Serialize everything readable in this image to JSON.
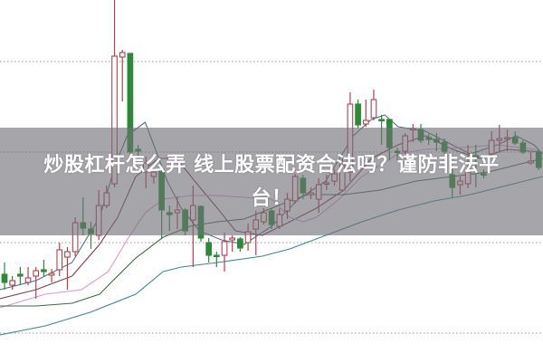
{
  "title": {
    "line1": "炒股杠杆怎么弄 线上股票配资合法吗？谨防非法平",
    "line2": "台！"
  },
  "colors": {
    "up": "#b0404e",
    "down": "#2a8a36",
    "grid": "#9a9a9a",
    "banner": "#707076"
  },
  "chart_data": {
    "type": "candlestick",
    "title": "",
    "xlabel": "",
    "ylabel": "",
    "axis_labels_shown": false,
    "grid": "horizontal dotted",
    "gridlines_y": [
      10,
      20,
      30,
      40
    ],
    "ylim": [
      6.7,
      46.8
    ],
    "xlim": [
      -0.6,
      68.5
    ],
    "candles_ohlc": [
      [
        16.5,
        17.8,
        14.8,
        15.6
      ],
      [
        15.3,
        16.3,
        14.8,
        15.8
      ],
      [
        16.5,
        17.3,
        15.3,
        16.3
      ],
      [
        15.6,
        17.3,
        15.3,
        16.1
      ],
      [
        16.3,
        17.3,
        13.8,
        16.9
      ],
      [
        17.0,
        18.1,
        16.3,
        16.8
      ],
      [
        16.4,
        17.1,
        15.6,
        16.6
      ],
      [
        17.0,
        20.0,
        16.3,
        19.2
      ],
      [
        18.4,
        19.5,
        14.8,
        19.0
      ],
      [
        19.0,
        22.8,
        18.5,
        22.2
      ],
      [
        22.2,
        25.0,
        20.8,
        21.6
      ],
      [
        21.5,
        22.3,
        19.3,
        21.0
      ],
      [
        20.8,
        25.8,
        20.3,
        24.1
      ],
      [
        24.1,
        26.3,
        23.8,
        25.5
      ],
      [
        26.5,
        46.8,
        26.1,
        40.6
      ],
      [
        40.5,
        41.3,
        35.6,
        41.0
      ],
      [
        40.9,
        40.9,
        29.8,
        30.0
      ],
      [
        30.3,
        30.8,
        29.3,
        30.1
      ],
      [
        27.8,
        29.5,
        26.0,
        28.8
      ],
      [
        27.3,
        28.1,
        26.5,
        27.8
      ],
      [
        28.1,
        28.1,
        20.5,
        23.6
      ],
      [
        23.3,
        24.1,
        21.3,
        23.1
      ],
      [
        23.3,
        25.1,
        21.5,
        23.6
      ],
      [
        23.6,
        23.8,
        20.8,
        21.3
      ],
      [
        22.5,
        26.3,
        17.3,
        24.1
      ],
      [
        24.0,
        24.1,
        20.1,
        20.5
      ],
      [
        20.0,
        20.5,
        17.8,
        18.6
      ],
      [
        18.6,
        19.0,
        17.3,
        18.5
      ],
      [
        18.6,
        21.1,
        16.8,
        20.1
      ],
      [
        20.3,
        20.8,
        19.0,
        20.5
      ],
      [
        20.4,
        20.6,
        19.0,
        19.4
      ],
      [
        20.0,
        22.1,
        19.1,
        21.2
      ],
      [
        21.5,
        23.5,
        18.6,
        22.5
      ],
      [
        22.3,
        23.8,
        22.0,
        23.3
      ],
      [
        23.5,
        23.8,
        21.5,
        22.0
      ],
      [
        21.8,
        23.8,
        21.5,
        23.1
      ],
      [
        23.5,
        25.5,
        22.6,
        24.8
      ],
      [
        24.6,
        27.6,
        24.3,
        27.3
      ],
      [
        27.1,
        27.5,
        24.8,
        25.5
      ],
      [
        25.3,
        26.1,
        24.8,
        25.5
      ],
      [
        24.8,
        27.1,
        23.3,
        26.4
      ],
      [
        26.5,
        27.5,
        25.8,
        26.6
      ],
      [
        26.8,
        28.1,
        26.3,
        27.6
      ],
      [
        25.8,
        29.5,
        25.6,
        28.6
      ],
      [
        27.8,
        36.6,
        26.8,
        35.3
      ],
      [
        35.3,
        35.8,
        32.6,
        33.0
      ],
      [
        33.1,
        35.8,
        32.8,
        33.5
      ],
      [
        33.8,
        36.9,
        33.5,
        35.8
      ],
      [
        33.6,
        34.1,
        30.8,
        33.5
      ],
      [
        33.6,
        33.6,
        29.1,
        30.5
      ],
      [
        30.1,
        30.5,
        29.1,
        30.0
      ],
      [
        30.1,
        32.1,
        29.8,
        31.8
      ],
      [
        32.5,
        33.1,
        31.1,
        32.6
      ],
      [
        32.5,
        33.1,
        31.0,
        31.3
      ],
      [
        31.6,
        32.0,
        30.8,
        31.4
      ],
      [
        31.4,
        32.1,
        30.1,
        31.1
      ],
      [
        31.1,
        31.5,
        29.8,
        30.1
      ],
      [
        27.5,
        28.1,
        25.0,
        26.1
      ],
      [
        26.4,
        27.3,
        25.3,
        26.8
      ],
      [
        26.5,
        30.8,
        26.0,
        27.8
      ],
      [
        29.6,
        30.8,
        26.1,
        29.5
      ],
      [
        27.6,
        28.1,
        27.1,
        27.5
      ],
      [
        29.8,
        32.3,
        29.5,
        31.3
      ],
      [
        31.3,
        33.0,
        30.1,
        31.5
      ],
      [
        31.5,
        32.5,
        30.1,
        31.6
      ],
      [
        31.6,
        32.3,
        30.8,
        31.0
      ],
      [
        31.0,
        31.3,
        29.8,
        30.0
      ],
      [
        28.8,
        30.0,
        28.6,
        29.0
      ],
      [
        30.0,
        30.3,
        28.0,
        28.3
      ]
    ],
    "moving_averages": [
      {
        "color": "#4f6f7c",
        "points": [
          [
            -0.6,
            14.8
          ],
          [
            4.0,
            15.8
          ],
          [
            8.6,
            17.8
          ],
          [
            12.1,
            22.8
          ],
          [
            14.2,
            28.8
          ],
          [
            15.6,
            31.8
          ],
          [
            17.9,
            33.3
          ],
          [
            19.0,
            30.8
          ],
          [
            20.7,
            26.8
          ],
          [
            22.5,
            23.8
          ],
          [
            24.8,
            21.3
          ],
          [
            27.6,
            20.3
          ],
          [
            30.5,
            19.8
          ],
          [
            34.0,
            21.8
          ],
          [
            37.4,
            24.8
          ],
          [
            40.9,
            26.8
          ],
          [
            44.4,
            31.8
          ],
          [
            46.7,
            33.6
          ],
          [
            48.4,
            34.1
          ],
          [
            50.1,
            32.8
          ],
          [
            53.6,
            32.3
          ],
          [
            57.0,
            30.8
          ],
          [
            59.3,
            29.8
          ],
          [
            62.8,
            30.8
          ],
          [
            65.1,
            31.8
          ],
          [
            67.4,
            30.8
          ],
          [
            68.5,
            29.8
          ]
        ]
      },
      {
        "color": "#7e3d55",
        "points": [
          [
            -0.6,
            13.8
          ],
          [
            4.0,
            14.8
          ],
          [
            8.6,
            16.3
          ],
          [
            12.1,
            19.8
          ],
          [
            14.4,
            22.8
          ],
          [
            16.7,
            27.3
          ],
          [
            19.6,
            29.3
          ],
          [
            21.9,
            29.3
          ],
          [
            24.2,
            26.8
          ],
          [
            27.1,
            23.8
          ],
          [
            29.4,
            21.3
          ],
          [
            32.8,
            20.8
          ],
          [
            36.3,
            22.3
          ],
          [
            39.7,
            23.8
          ],
          [
            43.2,
            25.8
          ],
          [
            46.7,
            29.3
          ],
          [
            50.1,
            30.8
          ],
          [
            53.6,
            31.8
          ],
          [
            57.0,
            30.3
          ],
          [
            60.5,
            29.3
          ],
          [
            63.9,
            30.3
          ],
          [
            68.5,
            30.0
          ]
        ]
      },
      {
        "color": "#d59ad2",
        "points": [
          [
            -0.6,
            12.8
          ],
          [
            5.2,
            14.3
          ],
          [
            9.8,
            14.8
          ],
          [
            13.2,
            16.8
          ],
          [
            15.6,
            20.3
          ],
          [
            17.9,
            23.3
          ],
          [
            20.2,
            24.8
          ],
          [
            23.6,
            25.2
          ],
          [
            27.1,
            25.2
          ],
          [
            30.5,
            25.0
          ],
          [
            34.0,
            24.8
          ],
          [
            36.3,
            22.8
          ],
          [
            38.0,
            22.3
          ],
          [
            39.7,
            22.8
          ],
          [
            42.6,
            24.8
          ],
          [
            45.5,
            27.3
          ],
          [
            50.1,
            29.8
          ],
          [
            53.6,
            30.3
          ],
          [
            58.2,
            30.5
          ],
          [
            62.8,
            30.8
          ],
          [
            67.4,
            30.3
          ],
          [
            68.5,
            30.0
          ]
        ]
      },
      {
        "color": "#3f6b3f",
        "points": [
          [
            -0.6,
            13.0
          ],
          [
            4.0,
            13.0
          ],
          [
            8.6,
            13.3
          ],
          [
            12.1,
            14.3
          ],
          [
            13.8,
            15.8
          ],
          [
            16.7,
            18.3
          ],
          [
            20.2,
            20.6
          ],
          [
            23.6,
            21.8
          ],
          [
            27.1,
            22.3
          ],
          [
            30.5,
            22.6
          ],
          [
            34.0,
            23.8
          ],
          [
            36.3,
            24.6
          ],
          [
            38.6,
            25.3
          ],
          [
            43.2,
            25.3
          ],
          [
            47.8,
            25.8
          ],
          [
            52.4,
            26.8
          ],
          [
            57.0,
            27.3
          ],
          [
            61.6,
            27.8
          ],
          [
            66.2,
            28.8
          ],
          [
            68.5,
            29.3
          ]
        ]
      },
      {
        "color": "#3b8791",
        "points": [
          [
            -0.6,
            9.8
          ],
          [
            5.2,
            10.8
          ],
          [
            10.9,
            12.3
          ],
          [
            16.7,
            14.3
          ],
          [
            20.2,
            16.8
          ],
          [
            22.5,
            17.3
          ],
          [
            27.1,
            17.8
          ],
          [
            32.8,
            18.5
          ],
          [
            36.3,
            19.3
          ],
          [
            40.9,
            20.8
          ],
          [
            45.5,
            22.3
          ],
          [
            50.1,
            23.6
          ],
          [
            54.7,
            24.6
          ],
          [
            59.3,
            25.3
          ],
          [
            63.9,
            26.3
          ],
          [
            68.5,
            27.3
          ]
        ]
      }
    ]
  }
}
